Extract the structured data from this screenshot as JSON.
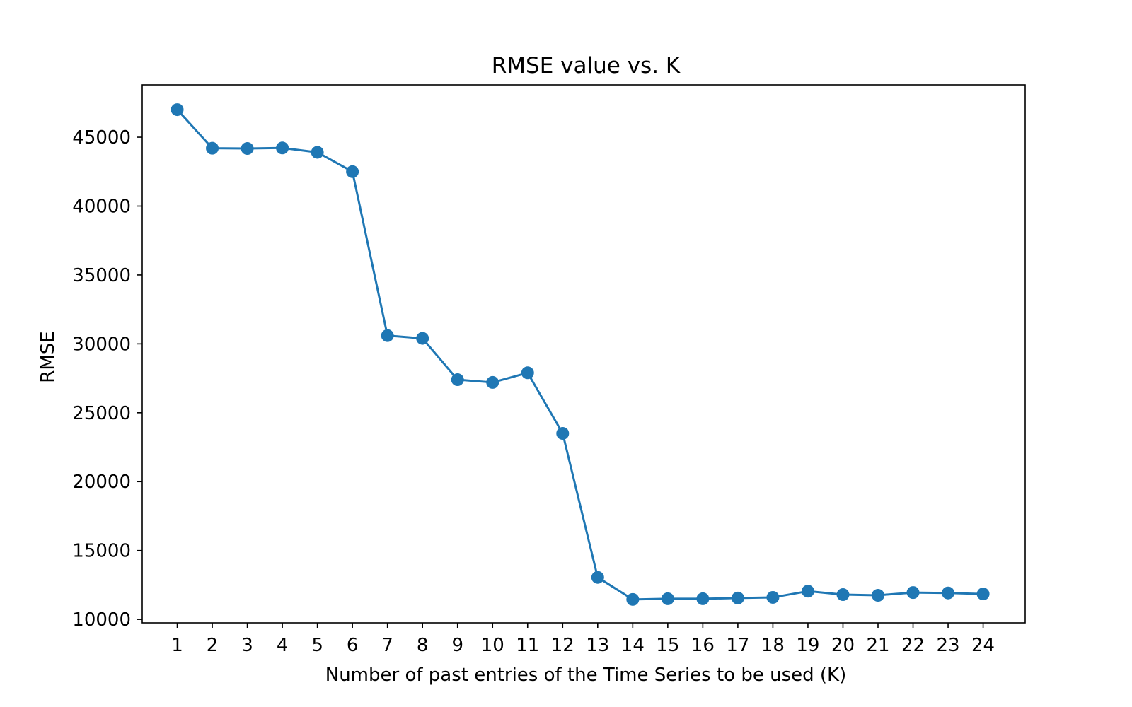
{
  "chart_data": {
    "type": "line",
    "title": "RMSE value vs. K",
    "xlabel": "Number of past entries of the Time Series to be used (K)",
    "ylabel": "RMSE",
    "x": [
      1,
      2,
      3,
      4,
      5,
      6,
      7,
      8,
      9,
      10,
      11,
      12,
      13,
      14,
      15,
      16,
      17,
      18,
      19,
      20,
      21,
      22,
      23,
      24
    ],
    "x_ticks": [
      "1",
      "2",
      "3",
      "4",
      "5",
      "6",
      "7",
      "8",
      "9",
      "10",
      "11",
      "12",
      "13",
      "14",
      "15",
      "16",
      "17",
      "18",
      "19",
      "20",
      "21",
      "22",
      "23",
      "24"
    ],
    "y_ticks": [
      10000,
      15000,
      20000,
      25000,
      30000,
      35000,
      40000,
      45000
    ],
    "y_tick_labels": [
      "10000",
      "15000",
      "20000",
      "25000",
      "30000",
      "35000",
      "40000",
      "45000"
    ],
    "xlim": [
      0,
      25.2
    ],
    "ylim": [
      9750,
      48800
    ],
    "grid": false,
    "legend": "none",
    "series": [
      {
        "color": "#1f77b4",
        "marker": "circle",
        "values": [
          47000,
          44200,
          44180,
          44220,
          43900,
          42500,
          30600,
          30400,
          27400,
          27200,
          27900,
          23500,
          13050,
          11450,
          11500,
          11500,
          11550,
          11600,
          12050,
          11800,
          11750,
          11950,
          11920,
          11850
        ]
      }
    ]
  }
}
